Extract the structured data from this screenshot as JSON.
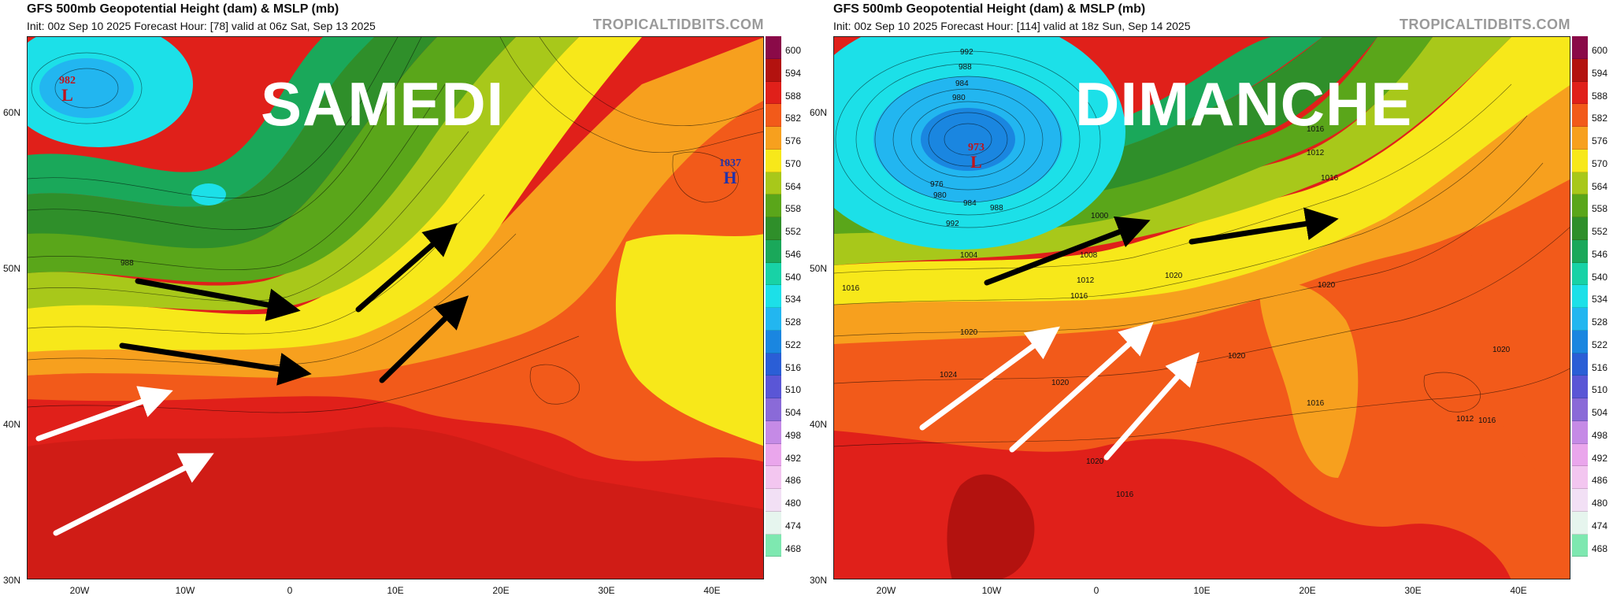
{
  "panels": [
    {
      "title": "GFS 500mb Geopotential Height (dam) & MSLP (mb)",
      "subtitle": "Init: 00z Sep 10 2025   Forecast Hour: [78]   valid at 06z Sat, Sep 13 2025",
      "brand": "TROPICALTIDBITS.COM",
      "overlay_label": "SAMEDI",
      "lows": [
        {
          "pressure": "982",
          "symbol": "L"
        }
      ],
      "highs": [
        {
          "pressure": "1037",
          "symbol": "H"
        }
      ],
      "isobar_labels": [
        "988"
      ]
    },
    {
      "title": "GFS 500mb Geopotential Height (dam) & MSLP (mb)",
      "subtitle": "Init: 00z Sep 10 2025   Forecast Hour: [114]   valid at 18z Sun, Sep 14 2025",
      "brand": "TROPICALTIDBITS.COM",
      "overlay_label": "DIMANCHE",
      "lows": [
        {
          "pressure": "973",
          "symbol": "L"
        }
      ],
      "highs": [],
      "isobar_labels": [
        "992",
        "988",
        "984",
        "980",
        "976",
        "980",
        "984",
        "988",
        "992",
        "1000",
        "1004",
        "1008",
        "1012",
        "1016",
        "1016",
        "1020",
        "1020",
        "1024",
        "1020",
        "1016",
        "1020",
        "1012",
        "1016",
        "1020",
        "1016",
        "1012",
        "1016",
        "1016",
        "1020",
        "1020"
      ]
    }
  ],
  "latitude_labels": [
    "60N",
    "50N",
    "40N",
    "30N"
  ],
  "longitude_labels": [
    "20W",
    "10W",
    "0",
    "10E",
    "20E",
    "30E",
    "40E"
  ],
  "colorbar": {
    "levels": [
      "600",
      "594",
      "588",
      "582",
      "576",
      "570",
      "564",
      "558",
      "552",
      "546",
      "540",
      "534",
      "528",
      "522",
      "516",
      "510",
      "504",
      "498",
      "492",
      "486",
      "480",
      "474",
      "468"
    ],
    "colors": [
      "#8a0a48",
      "#b3120f",
      "#e0201a",
      "#f25a1a",
      "#f7a01e",
      "#f7e81a",
      "#a8c81a",
      "#5aa61a",
      "#2f8f2a",
      "#1aa85a",
      "#18d2a6",
      "#1ce0e8",
      "#22b6f0",
      "#1a86e0",
      "#2a5ed6",
      "#5a56d6",
      "#8a6ad8",
      "#c58ae6",
      "#eaa6ec",
      "#f3c6f0",
      "#f2e0f5",
      "#e6f5ee",
      "#7ee8b0"
    ]
  },
  "arrows": {
    "left_black_count": 4,
    "left_white_count": 2,
    "right_black_count": 2,
    "right_white_count": 3
  }
}
